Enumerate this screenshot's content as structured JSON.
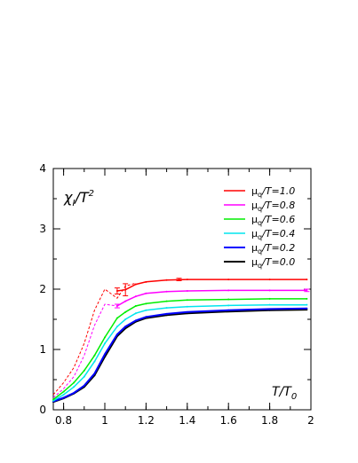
{
  "chart_data": {
    "type": "line",
    "ylabel_parts": {
      "base": "χ",
      "sub": "I",
      "sep": "/T",
      "sup": "2"
    },
    "xlabel_parts": {
      "base": "T/T",
      "sub": "0"
    },
    "xlim": [
      0.75,
      2.0
    ],
    "ylim": [
      0,
      4
    ],
    "x_ticks": [
      0.8,
      1,
      1.2,
      1.4,
      1.6,
      1.8,
      2
    ],
    "x_tick_labels": [
      "0.8",
      "1",
      "1.2",
      "1.4",
      "1.6",
      "1.8",
      "2"
    ],
    "y_ticks": [
      0,
      1,
      2,
      3,
      4
    ],
    "y_tick_labels": [
      "0",
      "1",
      "2",
      "3",
      "4"
    ],
    "legend_position": "top-right",
    "grid": false,
    "series": [
      {
        "name": "μq/T=1.0",
        "legend": {
          "pre": "μ",
          "sub": "q",
          "post": "/T=1.0"
        },
        "color": "#ff0000",
        "solid": [
          [
            1.06,
            1.97
          ],
          [
            1.1,
            1.99
          ],
          [
            1.15,
            2.08
          ],
          [
            1.2,
            2.12
          ],
          [
            1.3,
            2.15
          ],
          [
            1.4,
            2.16
          ],
          [
            1.6,
            2.16
          ],
          [
            1.8,
            2.16
          ],
          [
            1.98,
            2.16
          ]
        ],
        "dashed": [
          [
            0.75,
            0.25
          ],
          [
            0.8,
            0.45
          ],
          [
            0.85,
            0.7
          ],
          [
            0.9,
            1.1
          ],
          [
            0.95,
            1.65
          ],
          [
            1.0,
            2.0
          ],
          [
            1.06,
            1.85
          ],
          [
            1.1,
            2.05
          ],
          [
            1.15,
            2.1
          ]
        ],
        "errors": [
          [
            1.06,
            1.97,
            0.05
          ],
          [
            1.1,
            1.99,
            0.1
          ],
          [
            1.36,
            2.16,
            0.02
          ]
        ]
      },
      {
        "name": "μq/T=0.8",
        "legend": {
          "pre": "μ",
          "sub": "q",
          "post": "/T=0.8"
        },
        "color": "#ff00ff",
        "solid": [
          [
            1.06,
            1.72
          ],
          [
            1.1,
            1.8
          ],
          [
            1.15,
            1.88
          ],
          [
            1.2,
            1.93
          ],
          [
            1.3,
            1.96
          ],
          [
            1.4,
            1.97
          ],
          [
            1.6,
            1.98
          ],
          [
            1.8,
            1.98
          ],
          [
            1.98,
            1.98
          ]
        ],
        "dashed": [
          [
            0.75,
            0.2
          ],
          [
            0.8,
            0.35
          ],
          [
            0.85,
            0.55
          ],
          [
            0.9,
            0.9
          ],
          [
            0.95,
            1.4
          ],
          [
            1.0,
            1.75
          ],
          [
            1.06,
            1.72
          ]
        ],
        "errors": [
          [
            1.06,
            1.72,
            0.03
          ],
          [
            1.98,
            1.98,
            0.02
          ]
        ]
      },
      {
        "name": "μq/T=0.6",
        "legend": {
          "pre": "μ",
          "sub": "q",
          "post": "/T=0.6"
        },
        "color": "#00ee00",
        "solid": [
          [
            0.75,
            0.17
          ],
          [
            0.8,
            0.3
          ],
          [
            0.85,
            0.45
          ],
          [
            0.9,
            0.65
          ],
          [
            0.95,
            0.9
          ],
          [
            1.0,
            1.2
          ],
          [
            1.06,
            1.52
          ],
          [
            1.1,
            1.62
          ],
          [
            1.15,
            1.72
          ],
          [
            1.2,
            1.76
          ],
          [
            1.3,
            1.8
          ],
          [
            1.4,
            1.82
          ],
          [
            1.6,
            1.83
          ],
          [
            1.8,
            1.84
          ],
          [
            1.98,
            1.84
          ]
        ],
        "dashed": [],
        "errors": []
      },
      {
        "name": "μq/T=0.4",
        "legend": {
          "pre": "μ",
          "sub": "q",
          "post": "/T=0.4"
        },
        "color": "#00e5ee",
        "solid": [
          [
            0.75,
            0.15
          ],
          [
            0.8,
            0.25
          ],
          [
            0.85,
            0.38
          ],
          [
            0.9,
            0.55
          ],
          [
            0.95,
            0.8
          ],
          [
            1.0,
            1.1
          ],
          [
            1.06,
            1.38
          ],
          [
            1.1,
            1.5
          ],
          [
            1.15,
            1.6
          ],
          [
            1.2,
            1.65
          ],
          [
            1.3,
            1.69
          ],
          [
            1.4,
            1.71
          ],
          [
            1.6,
            1.73
          ],
          [
            1.8,
            1.74
          ],
          [
            1.98,
            1.74
          ]
        ],
        "dashed": [],
        "errors": []
      },
      {
        "name": "μq/T=0.2",
        "legend": {
          "pre": "μ",
          "sub": "q",
          "post": "/T=0.2"
        },
        "color": "#0000ff",
        "solid": [
          [
            0.75,
            0.14
          ],
          [
            0.8,
            0.2
          ],
          [
            0.85,
            0.28
          ],
          [
            0.9,
            0.4
          ],
          [
            0.95,
            0.6
          ],
          [
            1.0,
            0.92
          ],
          [
            1.06,
            1.25
          ],
          [
            1.1,
            1.38
          ],
          [
            1.15,
            1.48
          ],
          [
            1.2,
            1.54
          ],
          [
            1.3,
            1.59
          ],
          [
            1.4,
            1.62
          ],
          [
            1.6,
            1.65
          ],
          [
            1.8,
            1.67
          ],
          [
            1.98,
            1.68
          ]
        ],
        "dashed": [],
        "errors": []
      },
      {
        "name": "μq/T=0.0",
        "legend": {
          "pre": "μ",
          "sub": "q",
          "post": "/T=0.0"
        },
        "color": "#000000",
        "solid": [
          [
            0.75,
            0.13
          ],
          [
            0.8,
            0.19
          ],
          [
            0.85,
            0.27
          ],
          [
            0.9,
            0.38
          ],
          [
            0.95,
            0.57
          ],
          [
            1.0,
            0.88
          ],
          [
            1.06,
            1.22
          ],
          [
            1.1,
            1.35
          ],
          [
            1.15,
            1.46
          ],
          [
            1.2,
            1.52
          ],
          [
            1.3,
            1.57
          ],
          [
            1.4,
            1.6
          ],
          [
            1.6,
            1.63
          ],
          [
            1.8,
            1.65
          ],
          [
            1.98,
            1.66
          ]
        ],
        "dashed": [],
        "errors": []
      }
    ]
  }
}
